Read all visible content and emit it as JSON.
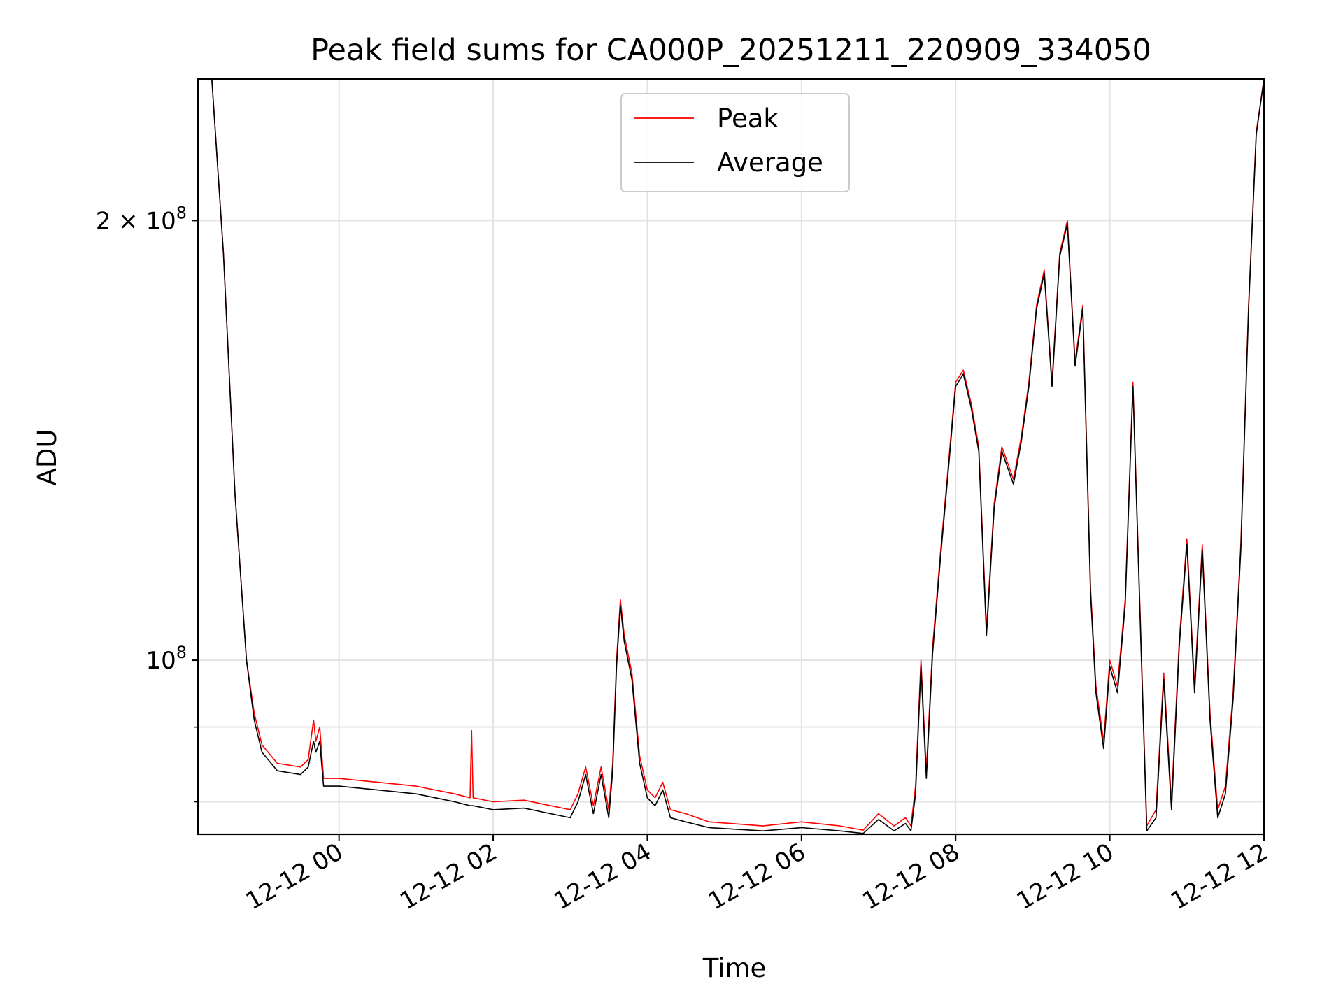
{
  "chart_data": {
    "type": "line",
    "title": "Peak field sums for CA000P_20251211_220909_334050",
    "xlabel": "Time",
    "ylabel": "ADU",
    "yscale": "log",
    "xlim_hours": [
      -1.83,
      12.0
    ],
    "ylim": [
      76000000,
      250000000
    ],
    "x_tick_hours": [
      0,
      2,
      4,
      6,
      8,
      10,
      12
    ],
    "x_tick_labels": [
      "12-12 00",
      "12-12 02",
      "12-12 04",
      "12-12 06",
      "12-12 08",
      "12-12 10",
      "12-12 12"
    ],
    "y_tick_values": [
      100000000,
      200000000
    ],
    "y_tick_labels": [
      {
        "base": "10",
        "exp": "8",
        "mult": ""
      },
      {
        "base": "10",
        "exp": "8",
        "mult": "2 × "
      }
    ],
    "y_minor_ticks": [
      80000000,
      90000000
    ],
    "legend": {
      "position": "top-center",
      "entries": [
        {
          "label": "Peak",
          "color": "#ff0000"
        },
        {
          "label": "Average",
          "color": "#000000"
        }
      ]
    },
    "series": [
      {
        "name": "Peak",
        "color": "#ff0000",
        "points": [
          [
            -1.83,
            250000000
          ],
          [
            -1.65,
            250000000
          ],
          [
            -1.5,
            190000000
          ],
          [
            -1.35,
            130000000
          ],
          [
            -1.2,
            100000000
          ],
          [
            -1.1,
            92000000
          ],
          [
            -1.0,
            87500000
          ],
          [
            -0.8,
            85000000
          ],
          [
            -0.5,
            84500000
          ],
          [
            -0.4,
            85500000
          ],
          [
            -0.33,
            91000000
          ],
          [
            -0.3,
            88000000
          ],
          [
            -0.25,
            90000000
          ],
          [
            -0.2,
            83000000
          ],
          [
            0,
            83000000
          ],
          [
            0.5,
            82500000
          ],
          [
            1.0,
            82000000
          ],
          [
            1.5,
            81000000
          ],
          [
            1.7,
            80500000
          ],
          [
            1.72,
            89500000
          ],
          [
            1.74,
            80500000
          ],
          [
            2.0,
            80000000
          ],
          [
            2.4,
            80200000
          ],
          [
            3.0,
            79000000
          ],
          [
            3.1,
            81000000
          ],
          [
            3.2,
            84500000
          ],
          [
            3.3,
            79500000
          ],
          [
            3.4,
            84500000
          ],
          [
            3.5,
            79000000
          ],
          [
            3.55,
            85000000
          ],
          [
            3.6,
            100000000
          ],
          [
            3.65,
            110000000
          ],
          [
            3.7,
            104000000
          ],
          [
            3.8,
            98000000
          ],
          [
            3.9,
            86000000
          ],
          [
            4.0,
            81500000
          ],
          [
            4.1,
            80500000
          ],
          [
            4.2,
            82500000
          ],
          [
            4.3,
            79000000
          ],
          [
            4.5,
            78500000
          ],
          [
            4.8,
            77500000
          ],
          [
            5.5,
            77000000
          ],
          [
            6.0,
            77500000
          ],
          [
            6.5,
            77000000
          ],
          [
            6.8,
            76500000
          ],
          [
            7.0,
            78500000
          ],
          [
            7.2,
            77000000
          ],
          [
            7.35,
            78000000
          ],
          [
            7.42,
            77000000
          ],
          [
            7.48,
            82000000
          ],
          [
            7.55,
            100000000
          ],
          [
            7.62,
            84000000
          ],
          [
            7.7,
            102000000
          ],
          [
            7.8,
            118000000
          ],
          [
            7.9,
            135000000
          ],
          [
            8.0,
            155000000
          ],
          [
            8.1,
            158000000
          ],
          [
            8.2,
            150000000
          ],
          [
            8.3,
            140000000
          ],
          [
            8.4,
            105000000
          ],
          [
            8.5,
            128000000
          ],
          [
            8.6,
            140000000
          ],
          [
            8.75,
            133000000
          ],
          [
            8.85,
            142000000
          ],
          [
            8.95,
            155000000
          ],
          [
            9.05,
            175000000
          ],
          [
            9.15,
            185000000
          ],
          [
            9.25,
            155000000
          ],
          [
            9.35,
            190000000
          ],
          [
            9.45,
            200000000
          ],
          [
            9.55,
            160000000
          ],
          [
            9.65,
            175000000
          ],
          [
            9.75,
            112000000
          ],
          [
            9.82,
            96000000
          ],
          [
            9.92,
            88000000
          ],
          [
            10.0,
            100000000
          ],
          [
            10.1,
            96000000
          ],
          [
            10.2,
            110000000
          ],
          [
            10.3,
            155000000
          ],
          [
            10.4,
            105000000
          ],
          [
            10.48,
            77000000
          ],
          [
            10.6,
            79000000
          ],
          [
            10.7,
            98000000
          ],
          [
            10.8,
            80000000
          ],
          [
            10.9,
            103000000
          ],
          [
            11.0,
            121000000
          ],
          [
            11.1,
            96000000
          ],
          [
            11.2,
            120000000
          ],
          [
            11.3,
            92000000
          ],
          [
            11.4,
            79000000
          ],
          [
            11.5,
            82000000
          ],
          [
            11.6,
            95000000
          ],
          [
            11.7,
            120000000
          ],
          [
            11.8,
            175000000
          ],
          [
            11.9,
            230000000
          ],
          [
            12.0,
            250000000
          ]
        ]
      },
      {
        "name": "Average",
        "color": "#000000",
        "points": [
          [
            -1.83,
            250000000
          ],
          [
            -1.65,
            250000000
          ],
          [
            -1.5,
            190000000
          ],
          [
            -1.35,
            130000000
          ],
          [
            -1.2,
            100000000
          ],
          [
            -1.1,
            91000000
          ],
          [
            -1.0,
            86500000
          ],
          [
            -0.8,
            84000000
          ],
          [
            -0.5,
            83500000
          ],
          [
            -0.4,
            84500000
          ],
          [
            -0.33,
            88000000
          ],
          [
            -0.3,
            86500000
          ],
          [
            -0.25,
            88000000
          ],
          [
            -0.2,
            82000000
          ],
          [
            0,
            82000000
          ],
          [
            0.5,
            81500000
          ],
          [
            1.0,
            81000000
          ],
          [
            1.5,
            80000000
          ],
          [
            1.7,
            79500000
          ],
          [
            1.74,
            79500000
          ],
          [
            2.0,
            79000000
          ],
          [
            2.4,
            79200000
          ],
          [
            3.0,
            78000000
          ],
          [
            3.1,
            80000000
          ],
          [
            3.2,
            83500000
          ],
          [
            3.3,
            78500000
          ],
          [
            3.4,
            83500000
          ],
          [
            3.5,
            78000000
          ],
          [
            3.55,
            84000000
          ],
          [
            3.6,
            99000000
          ],
          [
            3.65,
            109000000
          ],
          [
            3.7,
            103000000
          ],
          [
            3.8,
            97000000
          ],
          [
            3.9,
            85000000
          ],
          [
            4.0,
            80500000
          ],
          [
            4.1,
            79500000
          ],
          [
            4.2,
            81500000
          ],
          [
            4.3,
            78000000
          ],
          [
            4.5,
            77500000
          ],
          [
            4.8,
            76800000
          ],
          [
            5.5,
            76400000
          ],
          [
            6.0,
            76800000
          ],
          [
            6.5,
            76400000
          ],
          [
            6.8,
            76100000
          ],
          [
            7.0,
            77800000
          ],
          [
            7.2,
            76400000
          ],
          [
            7.35,
            77300000
          ],
          [
            7.42,
            76400000
          ],
          [
            7.48,
            81000000
          ],
          [
            7.55,
            99000000
          ],
          [
            7.62,
            83000000
          ],
          [
            7.7,
            101000000
          ],
          [
            7.8,
            117000000
          ],
          [
            7.9,
            134000000
          ],
          [
            8.0,
            154000000
          ],
          [
            8.1,
            157000000
          ],
          [
            8.2,
            149000000
          ],
          [
            8.3,
            139000000
          ],
          [
            8.4,
            104000000
          ],
          [
            8.5,
            127000000
          ],
          [
            8.6,
            139000000
          ],
          [
            8.75,
            132000000
          ],
          [
            8.85,
            141000000
          ],
          [
            8.95,
            154000000
          ],
          [
            9.05,
            174000000
          ],
          [
            9.15,
            184000000
          ],
          [
            9.25,
            154000000
          ],
          [
            9.35,
            189000000
          ],
          [
            9.45,
            199000000
          ],
          [
            9.55,
            159000000
          ],
          [
            9.65,
            174000000
          ],
          [
            9.75,
            111000000
          ],
          [
            9.82,
            95000000
          ],
          [
            9.92,
            87000000
          ],
          [
            10.0,
            99000000
          ],
          [
            10.1,
            95000000
          ],
          [
            10.2,
            109000000
          ],
          [
            10.3,
            154000000
          ],
          [
            10.4,
            104000000
          ],
          [
            10.48,
            76400000
          ],
          [
            10.6,
            78000000
          ],
          [
            10.7,
            97000000
          ],
          [
            10.8,
            79000000
          ],
          [
            10.9,
            102000000
          ],
          [
            11.0,
            120000000
          ],
          [
            11.1,
            95000000
          ],
          [
            11.2,
            119000000
          ],
          [
            11.3,
            91000000
          ],
          [
            11.4,
            78000000
          ],
          [
            11.5,
            81000000
          ],
          [
            11.6,
            94000000
          ],
          [
            11.7,
            119000000
          ],
          [
            11.8,
            174000000
          ],
          [
            11.9,
            229000000
          ],
          [
            12.0,
            250000000
          ]
        ]
      }
    ]
  }
}
